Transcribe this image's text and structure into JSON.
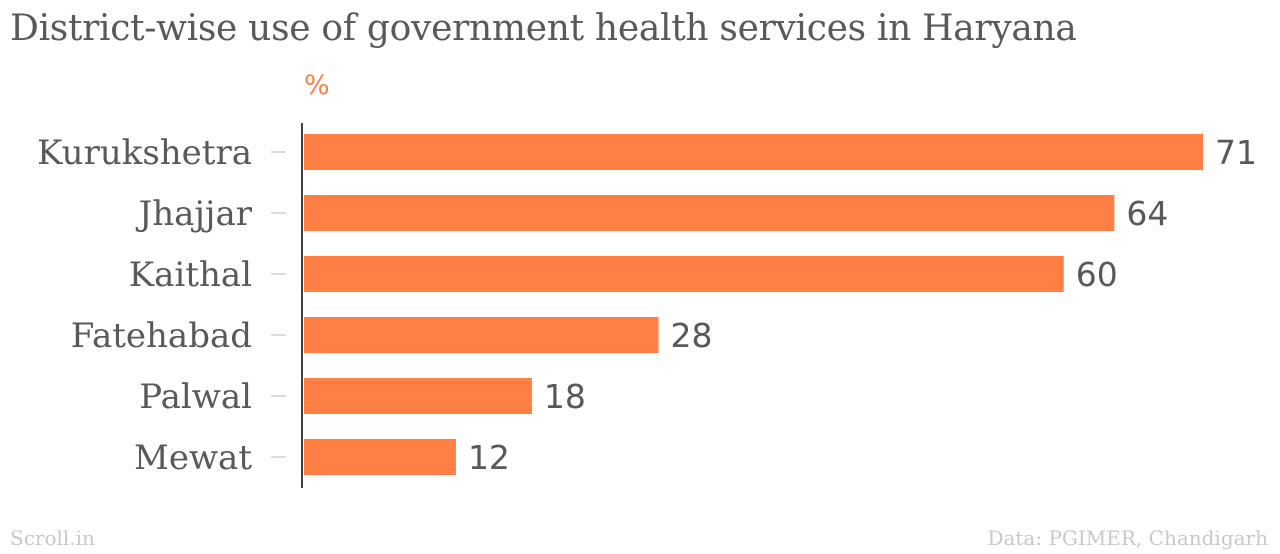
{
  "title": "District-wise use of government health services in Haryana",
  "unit_label": "%",
  "footer": {
    "credit": "Scroll.in",
    "source": "Data: PGIMER, Chandigarh"
  },
  "colors": {
    "bar": "#ff7f45",
    "unit_label": "#ff7f45",
    "text": "#595959",
    "axis": "#000000",
    "footer": "#c9c9c9"
  },
  "chart_data": {
    "type": "bar",
    "orientation": "horizontal",
    "categories": [
      "Kurukshetra",
      "Jhajjar",
      "Kaithal",
      "Fatehabad",
      "Palwal",
      "Mewat"
    ],
    "values": [
      71,
      64,
      60,
      28,
      18,
      12
    ],
    "title": "District-wise use of government health services in Haryana",
    "xlabel": "%",
    "ylabel": "",
    "xlim": [
      0,
      71
    ],
    "grid": false,
    "legend": "none"
  }
}
